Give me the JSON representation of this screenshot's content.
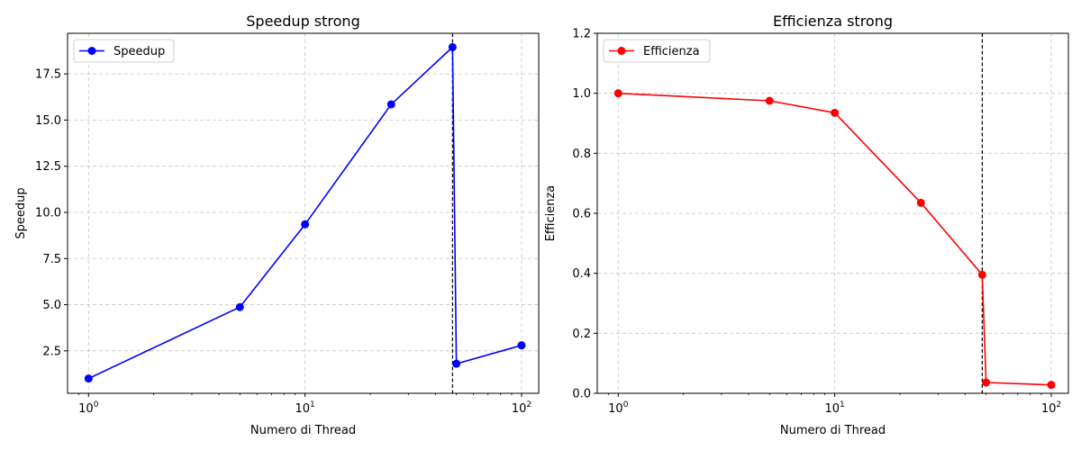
{
  "chart_data": [
    {
      "type": "line",
      "title": "Speedup strong",
      "xlabel": "Numero di Thread",
      "ylabel": "Speedup",
      "xscale": "log",
      "xlim": [
        0.8,
        120
      ],
      "ylim": [
        0.2,
        19.7
      ],
      "x_ticks": [
        1,
        10,
        100
      ],
      "x_tick_labels": [
        "10^0",
        "10^1",
        "10^2"
      ],
      "y_ticks": [
        2.5,
        5.0,
        7.5,
        10.0,
        12.5,
        15.0,
        17.5
      ],
      "y_tick_labels": [
        "2.5",
        "5.0",
        "7.5",
        "10.0",
        "12.5",
        "15.0",
        "17.5"
      ],
      "grid": true,
      "legend_position": "top-left",
      "vline_x": 48,
      "series": [
        {
          "name": "Speedup",
          "color": "#0000ff",
          "marker": "circle",
          "x": [
            1,
            5,
            10,
            25,
            48,
            50,
            100
          ],
          "y": [
            1.0,
            4.87,
            9.35,
            15.85,
            18.95,
            1.8,
            2.8
          ]
        }
      ]
    },
    {
      "type": "line",
      "title": "Efficienza strong",
      "xlabel": "Numero di Thread",
      "ylabel": "Efficienza",
      "xscale": "log",
      "xlim": [
        0.8,
        120
      ],
      "ylim": [
        0.0,
        1.2
      ],
      "x_ticks": [
        1,
        10,
        100
      ],
      "x_tick_labels": [
        "10^0",
        "10^1",
        "10^2"
      ],
      "y_ticks": [
        0.0,
        0.2,
        0.4,
        0.6,
        0.8,
        1.0,
        1.2
      ],
      "y_tick_labels": [
        "0.0",
        "0.2",
        "0.4",
        "0.6",
        "0.8",
        "1.0",
        "1.2"
      ],
      "grid": true,
      "legend_position": "top-left",
      "vline_x": 48,
      "series": [
        {
          "name": "Efficienza",
          "color": "#ff0000",
          "marker": "circle",
          "x": [
            1,
            5,
            10,
            25,
            48,
            50,
            100
          ],
          "y": [
            1.0,
            0.975,
            0.935,
            0.635,
            0.395,
            0.036,
            0.028
          ]
        }
      ]
    }
  ]
}
